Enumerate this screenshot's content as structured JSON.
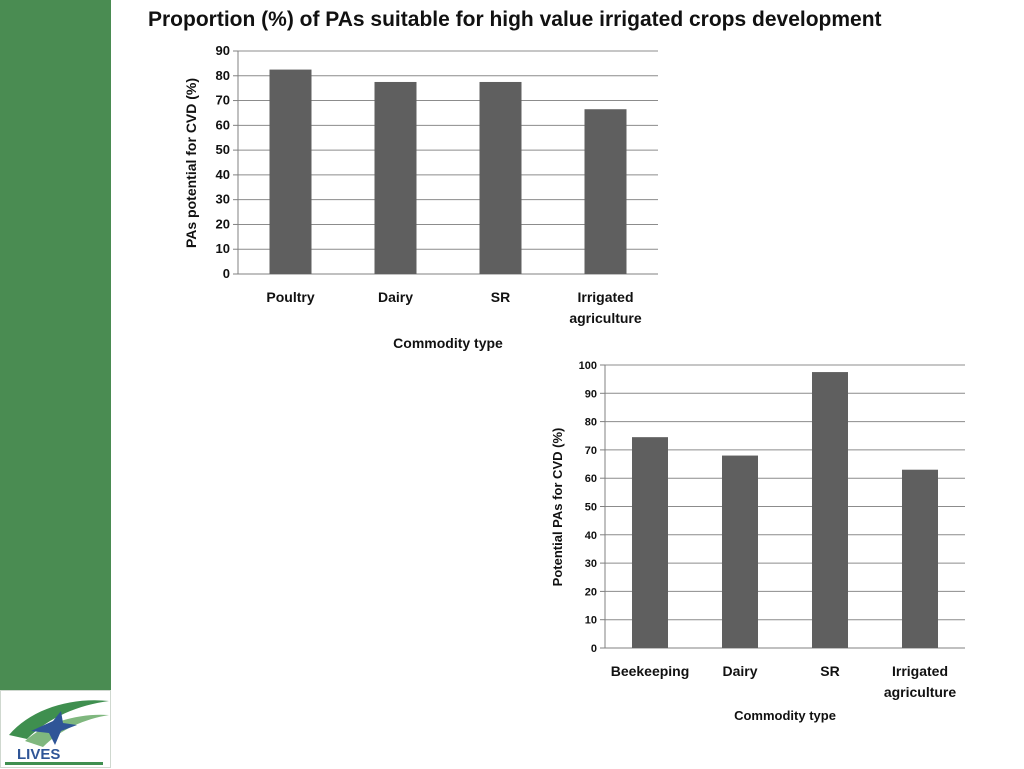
{
  "slide": {
    "title": "Proportion (%) of PAs suitable for high value irrigated crops development",
    "sidebar_color": "#4a8c52",
    "logo": {
      "text": "LIVES",
      "icon": "bird-logo-icon"
    }
  },
  "chart_data": [
    {
      "type": "bar",
      "categories": [
        [
          "Poultry"
        ],
        [
          "Dairy"
        ],
        [
          "SR"
        ],
        [
          "Irrigated",
          "agriculture"
        ]
      ],
      "values": [
        82.5,
        77.5,
        77.5,
        66.5
      ],
      "title": "",
      "xlabel": "Commodity type",
      "ylabel": "PAs potential for CVD (%)",
      "ylim": [
        0,
        90
      ],
      "yticks": [
        0,
        10,
        20,
        30,
        40,
        50,
        60,
        70,
        80,
        90
      ],
      "grid": true,
      "bar_color": "#5f5f5f"
    },
    {
      "type": "bar",
      "categories": [
        [
          "Beekeeping"
        ],
        [
          "Dairy"
        ],
        [
          "SR"
        ],
        [
          "Irrigated",
          "agriculture"
        ]
      ],
      "values": [
        74.5,
        68,
        97.5,
        63
      ],
      "title": "",
      "xlabel": "Commodity type",
      "ylabel": "Potential PAs for CVD (%)",
      "ylim": [
        0,
        100
      ],
      "yticks": [
        0,
        10,
        20,
        30,
        40,
        50,
        60,
        70,
        80,
        90,
        100
      ],
      "grid": true,
      "bar_color": "#5f5f5f"
    }
  ]
}
